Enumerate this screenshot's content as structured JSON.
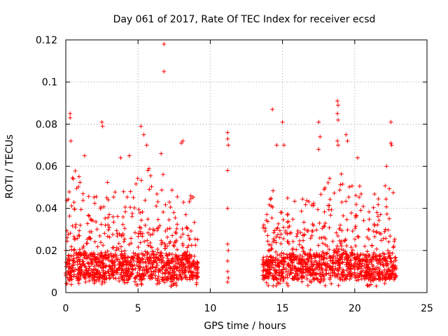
{
  "chart_data": {
    "type": "scatter",
    "title": "Day 061 of 2017, Rate Of TEC Index for receiver ecsd",
    "xlabel": "GPS time / hours",
    "ylabel": "ROTI / TECUs",
    "xlim": [
      0,
      25
    ],
    "ylim": [
      0,
      0.12
    ],
    "xticks": [
      "0",
      "5",
      "10",
      "15",
      "20",
      "25"
    ],
    "yticks": [
      "0",
      "0.02",
      "0.04",
      "0.06",
      "0.08",
      "0.1",
      "0.12"
    ],
    "grid": true,
    "marker": "+",
    "color": "#ff0000",
    "density_profile": [
      {
        "x": 0.0,
        "y_min": 0.003,
        "y_max": 0.045,
        "dense_max": 0.025
      },
      {
        "x": 0.5,
        "y_min": 0.003,
        "y_max": 0.06,
        "dense_max": 0.03
      },
      {
        "x": 1.5,
        "y_min": 0.003,
        "y_max": 0.05,
        "dense_max": 0.028
      },
      {
        "x": 2.5,
        "y_min": 0.003,
        "y_max": 0.055,
        "dense_max": 0.03
      },
      {
        "x": 3.5,
        "y_min": 0.003,
        "y_max": 0.05,
        "dense_max": 0.028
      },
      {
        "x": 4.5,
        "y_min": 0.003,
        "y_max": 0.05,
        "dense_max": 0.025
      },
      {
        "x": 5.5,
        "y_min": 0.003,
        "y_max": 0.06,
        "dense_max": 0.03
      },
      {
        "x": 6.5,
        "y_min": 0.003,
        "y_max": 0.06,
        "dense_max": 0.03
      },
      {
        "x": 7.5,
        "y_min": 0.003,
        "y_max": 0.05,
        "dense_max": 0.028
      },
      {
        "x": 8.5,
        "y_min": 0.003,
        "y_max": 0.06,
        "dense_max": 0.03
      },
      {
        "x": 9.2,
        "y_min": 0.003,
        "y_max": 0.03,
        "dense_max": 0.02
      },
      {
        "x": 13.6,
        "y_min": 0.003,
        "y_max": 0.03,
        "dense_max": 0.02
      },
      {
        "x": 14.5,
        "y_min": 0.003,
        "y_max": 0.055,
        "dense_max": 0.03
      },
      {
        "x": 15.5,
        "y_min": 0.003,
        "y_max": 0.05,
        "dense_max": 0.028
      },
      {
        "x": 16.5,
        "y_min": 0.003,
        "y_max": 0.05,
        "dense_max": 0.028
      },
      {
        "x": 17.5,
        "y_min": 0.003,
        "y_max": 0.055,
        "dense_max": 0.03
      },
      {
        "x": 18.5,
        "y_min": 0.003,
        "y_max": 0.06,
        "dense_max": 0.03
      },
      {
        "x": 19.5,
        "y_min": 0.003,
        "y_max": 0.055,
        "dense_max": 0.03
      },
      {
        "x": 20.5,
        "y_min": 0.003,
        "y_max": 0.05,
        "dense_max": 0.028
      },
      {
        "x": 21.5,
        "y_min": 0.003,
        "y_max": 0.05,
        "dense_max": 0.028
      },
      {
        "x": 22.5,
        "y_min": 0.003,
        "y_max": 0.055,
        "dense_max": 0.03
      },
      {
        "x": 22.9,
        "y_min": 0.003,
        "y_max": 0.045,
        "dense_max": 0.025
      }
    ],
    "data_coverage": [
      {
        "start": 0.0,
        "end": 9.2
      },
      {
        "start": 11.1,
        "end": 11.4
      },
      {
        "start": 13.6,
        "end": 22.9
      }
    ],
    "notable_points": [
      {
        "x": 0.3,
        "y": 0.085
      },
      {
        "x": 0.3,
        "y": 0.083
      },
      {
        "x": 0.35,
        "y": 0.072
      },
      {
        "x": 2.5,
        "y": 0.081
      },
      {
        "x": 2.55,
        "y": 0.079
      },
      {
        "x": 5.2,
        "y": 0.079
      },
      {
        "x": 5.4,
        "y": 0.075
      },
      {
        "x": 5.6,
        "y": 0.07
      },
      {
        "x": 6.6,
        "y": 0.066
      },
      {
        "x": 6.8,
        "y": 0.118
      },
      {
        "x": 6.8,
        "y": 0.105
      },
      {
        "x": 8.1,
        "y": 0.072
      },
      {
        "x": 11.2,
        "y": 0.076
      },
      {
        "x": 11.2,
        "y": 0.073
      },
      {
        "x": 11.25,
        "y": 0.07
      },
      {
        "x": 11.2,
        "y": 0.058
      },
      {
        "x": 11.2,
        "y": 0.04
      },
      {
        "x": 11.2,
        "y": 0.023
      },
      {
        "x": 11.25,
        "y": 0.02
      },
      {
        "x": 11.2,
        "y": 0.015
      },
      {
        "x": 11.2,
        "y": 0.01
      },
      {
        "x": 11.25,
        "y": 0.007
      },
      {
        "x": 11.2,
        "y": 0.005
      },
      {
        "x": 14.3,
        "y": 0.087
      },
      {
        "x": 14.6,
        "y": 0.07
      },
      {
        "x": 15.0,
        "y": 0.081
      },
      {
        "x": 15.1,
        "y": 0.07
      },
      {
        "x": 17.5,
        "y": 0.081
      },
      {
        "x": 17.6,
        "y": 0.074
      },
      {
        "x": 17.5,
        "y": 0.068
      },
      {
        "x": 18.8,
        "y": 0.091
      },
      {
        "x": 18.85,
        "y": 0.089
      },
      {
        "x": 18.8,
        "y": 0.085
      },
      {
        "x": 18.85,
        "y": 0.082
      },
      {
        "x": 18.8,
        "y": 0.072
      },
      {
        "x": 18.85,
        "y": 0.07
      },
      {
        "x": 19.4,
        "y": 0.075
      },
      {
        "x": 19.5,
        "y": 0.072
      },
      {
        "x": 20.2,
        "y": 0.064
      },
      {
        "x": 22.2,
        "y": 0.06
      },
      {
        "x": 22.5,
        "y": 0.081
      },
      {
        "x": 22.5,
        "y": 0.071
      },
      {
        "x": 22.55,
        "y": 0.07
      },
      {
        "x": 8.0,
        "y": 0.071
      },
      {
        "x": 3.8,
        "y": 0.064
      },
      {
        "x": 1.3,
        "y": 0.065
      },
      {
        "x": 4.4,
        "y": 0.065
      }
    ]
  }
}
